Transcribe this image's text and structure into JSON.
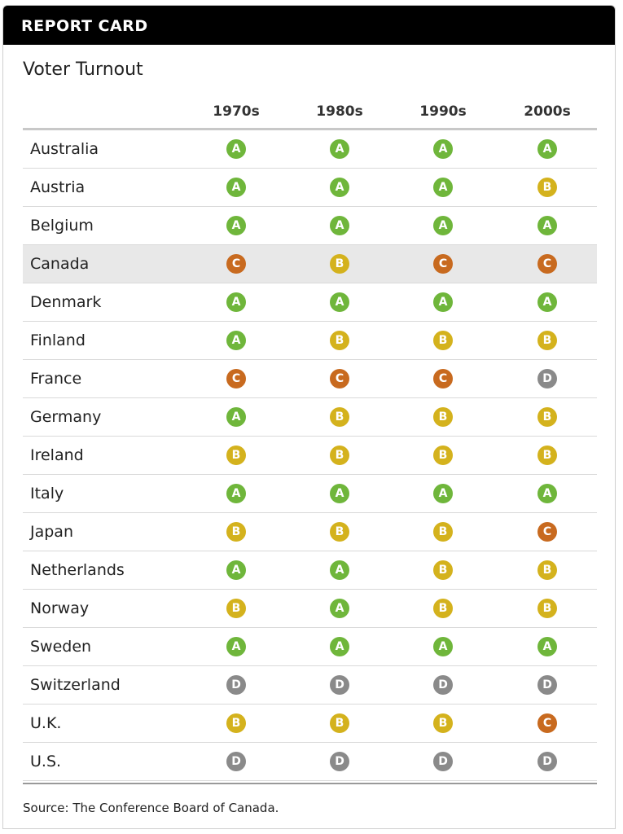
{
  "header": {
    "banner": "REPORT CARD"
  },
  "chart_data": {
    "type": "table",
    "title": "Voter Turnout",
    "columns": [
      "1970s",
      "1980s",
      "1990s",
      "2000s"
    ],
    "highlight_row": "Canada",
    "rows": [
      {
        "country": "Australia",
        "grades": [
          "A",
          "A",
          "A",
          "A"
        ]
      },
      {
        "country": "Austria",
        "grades": [
          "A",
          "A",
          "A",
          "B"
        ]
      },
      {
        "country": "Belgium",
        "grades": [
          "A",
          "A",
          "A",
          "A"
        ]
      },
      {
        "country": "Canada",
        "grades": [
          "C",
          "B",
          "C",
          "C"
        ]
      },
      {
        "country": "Denmark",
        "grades": [
          "A",
          "A",
          "A",
          "A"
        ]
      },
      {
        "country": "Finland",
        "grades": [
          "A",
          "B",
          "B",
          "B"
        ]
      },
      {
        "country": "France",
        "grades": [
          "C",
          "C",
          "C",
          "D"
        ]
      },
      {
        "country": "Germany",
        "grades": [
          "A",
          "B",
          "B",
          "B"
        ]
      },
      {
        "country": "Ireland",
        "grades": [
          "B",
          "B",
          "B",
          "B"
        ]
      },
      {
        "country": "Italy",
        "grades": [
          "A",
          "A",
          "A",
          "A"
        ]
      },
      {
        "country": "Japan",
        "grades": [
          "B",
          "B",
          "B",
          "C"
        ]
      },
      {
        "country": "Netherlands",
        "grades": [
          "A",
          "A",
          "B",
          "B"
        ]
      },
      {
        "country": "Norway",
        "grades": [
          "B",
          "A",
          "B",
          "B"
        ]
      },
      {
        "country": "Sweden",
        "grades": [
          "A",
          "A",
          "A",
          "A"
        ]
      },
      {
        "country": "Switzerland",
        "grades": [
          "D",
          "D",
          "D",
          "D"
        ]
      },
      {
        "country": "U.K.",
        "grades": [
          "B",
          "B",
          "B",
          "C"
        ]
      },
      {
        "country": "U.S.",
        "grades": [
          "D",
          "D",
          "D",
          "D"
        ]
      }
    ],
    "grade_colors": {
      "A": "#6fb63b",
      "B": "#d4b21d",
      "C": "#c86a1f",
      "D": "#8a8a8a"
    },
    "source": "Source: The Conference Board of Canada."
  }
}
